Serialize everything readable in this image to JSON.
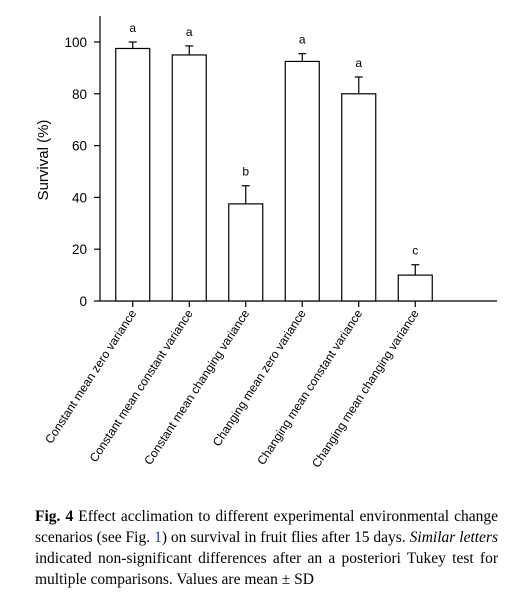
{
  "chart_data": {
    "type": "bar",
    "ylabel": "Survival (%)",
    "xlabel": "",
    "ylim": [
      0,
      100
    ],
    "y_ticks": [
      0,
      20,
      40,
      60,
      80,
      100
    ],
    "categories": [
      "Constant mean zero variance",
      "Constant mean constant variance",
      "Constant mean changing variance",
      "Changing mean zero variance",
      "Changing mean constant variance",
      "Changing mean changing variance"
    ],
    "values": [
      97.5,
      95,
      37.5,
      92.5,
      80,
      10
    ],
    "errors": [
      2.5,
      3.5,
      7,
      3,
      6.5,
      4
    ],
    "letters": [
      "a",
      "a",
      "b",
      "a",
      "a",
      "c"
    ],
    "grid": false,
    "colors": {
      "bar_fill": "#ffffff",
      "bar_stroke": "#000000"
    }
  },
  "caption": {
    "label": "Fig. 4",
    "text_before_ref": " Effect acclimation to different experimental environmental change scenarios (see Fig. ",
    "ref": "1",
    "text_after_ref": ") on survival in fruit flies after 15 days. ",
    "italic": "Similar letters",
    "text_end": " indicated non-significant differences after an a posteriori Tukey test for multiple comparisons. Values are mean ± SD"
  }
}
